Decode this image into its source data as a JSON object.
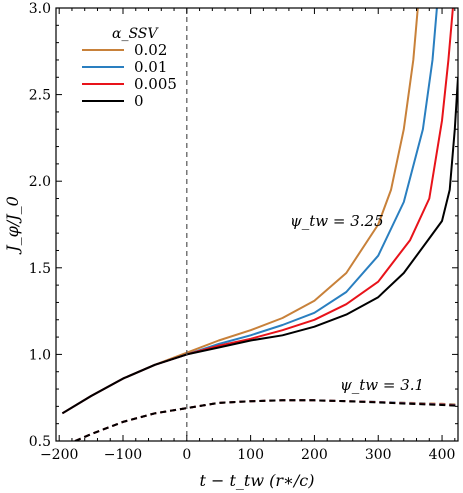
{
  "chart_data": {
    "type": "line",
    "xlabel": "t − t_tw  (r∗/c)",
    "ylabel": "J_φ/J_0",
    "xlim": [
      -205,
      425
    ],
    "ylim": [
      0.5,
      3.0
    ],
    "x_ticks": [
      -200,
      -100,
      0,
      100,
      200,
      300,
      400
    ],
    "x_tick_labels": [
      "−200",
      "−100",
      "0",
      "100",
      "200",
      "300",
      "400"
    ],
    "y_ticks": [
      0.5,
      1.0,
      1.5,
      2.0,
      2.5,
      3.0
    ],
    "y_tick_labels": [
      "0.5",
      "1.0",
      "1.5",
      "2.0",
      "2.5",
      "3.0"
    ],
    "vline_x": 0,
    "legend": {
      "title": "α_SSV",
      "placement": "top-left",
      "entries": [
        "0.02",
        "0.01",
        "0.005",
        "0"
      ]
    },
    "annotations": [
      {
        "text": "ψ_tw = 3.25",
        "x": 210,
        "y": 1.77
      },
      {
        "text": "ψ_tw = 3.1",
        "x": 240,
        "y": 0.81
      }
    ],
    "colors": {
      "s002": "#c8813a",
      "s001": "#2a7fc0",
      "s0005": "#e8131a",
      "s0": "#000000"
    },
    "series": [
      {
        "name": "0.02",
        "color_key": "s002",
        "style": "solid",
        "points": [
          [
            -195,
            0.66
          ],
          [
            -150,
            0.76
          ],
          [
            -100,
            0.86
          ],
          [
            -50,
            0.94
          ],
          [
            0,
            1.01
          ],
          [
            50,
            1.08
          ],
          [
            100,
            1.14
          ],
          [
            150,
            1.21
          ],
          [
            200,
            1.31
          ],
          [
            250,
            1.47
          ],
          [
            300,
            1.75
          ],
          [
            320,
            1.95
          ],
          [
            340,
            2.3
          ],
          [
            355,
            2.7
          ],
          [
            362,
            3.0
          ]
        ]
      },
      {
        "name": "0.01",
        "color_key": "s001",
        "style": "solid",
        "points": [
          [
            -195,
            0.66
          ],
          [
            -150,
            0.76
          ],
          [
            -100,
            0.86
          ],
          [
            -50,
            0.94
          ],
          [
            0,
            1.0
          ],
          [
            50,
            1.06
          ],
          [
            100,
            1.11
          ],
          [
            150,
            1.17
          ],
          [
            200,
            1.24
          ],
          [
            250,
            1.36
          ],
          [
            300,
            1.57
          ],
          [
            340,
            1.88
          ],
          [
            370,
            2.3
          ],
          [
            385,
            2.7
          ],
          [
            392,
            3.0
          ]
        ]
      },
      {
        "name": "0.005",
        "color_key": "s0005",
        "style": "solid",
        "points": [
          [
            -195,
            0.66
          ],
          [
            -150,
            0.76
          ],
          [
            -100,
            0.86
          ],
          [
            -50,
            0.94
          ],
          [
            0,
            1.0
          ],
          [
            50,
            1.05
          ],
          [
            100,
            1.09
          ],
          [
            150,
            1.14
          ],
          [
            200,
            1.2
          ],
          [
            250,
            1.29
          ],
          [
            300,
            1.42
          ],
          [
            350,
            1.66
          ],
          [
            380,
            1.9
          ],
          [
            400,
            2.35
          ],
          [
            410,
            2.7
          ],
          [
            417,
            3.0
          ]
        ]
      },
      {
        "name": "0",
        "color_key": "s0",
        "style": "solid",
        "points": [
          [
            -195,
            0.66
          ],
          [
            -150,
            0.76
          ],
          [
            -100,
            0.86
          ],
          [
            -50,
            0.94
          ],
          [
            0,
            1.0
          ],
          [
            50,
            1.04
          ],
          [
            100,
            1.08
          ],
          [
            150,
            1.11
          ],
          [
            200,
            1.16
          ],
          [
            250,
            1.23
          ],
          [
            300,
            1.33
          ],
          [
            340,
            1.47
          ],
          [
            380,
            1.67
          ],
          [
            400,
            1.77
          ],
          [
            412,
            1.95
          ],
          [
            420,
            2.3
          ],
          [
            425,
            2.6
          ]
        ]
      },
      {
        "name": "",
        "color_key": "s002",
        "style": "dashed",
        "points": [
          [
            -175,
            0.5
          ],
          [
            -150,
            0.54
          ],
          [
            -100,
            0.61
          ],
          [
            -50,
            0.66
          ],
          [
            0,
            0.69
          ],
          [
            50,
            0.72
          ],
          [
            100,
            0.73
          ],
          [
            150,
            0.735
          ],
          [
            200,
            0.735
          ],
          [
            250,
            0.73
          ],
          [
            300,
            0.725
          ],
          [
            350,
            0.72
          ],
          [
            400,
            0.715
          ],
          [
            425,
            0.71
          ]
        ]
      },
      {
        "name": "",
        "color_key": "s001",
        "style": "dashed",
        "points": [
          [
            -175,
            0.5
          ],
          [
            -150,
            0.54
          ],
          [
            -100,
            0.61
          ],
          [
            -50,
            0.66
          ],
          [
            0,
            0.69
          ],
          [
            50,
            0.72
          ],
          [
            100,
            0.73
          ],
          [
            150,
            0.735
          ],
          [
            200,
            0.735
          ],
          [
            250,
            0.73
          ],
          [
            300,
            0.725
          ],
          [
            350,
            0.718
          ],
          [
            400,
            0.712
          ],
          [
            425,
            0.707
          ]
        ]
      },
      {
        "name": "",
        "color_key": "s0005",
        "style": "dashed",
        "points": [
          [
            -175,
            0.5
          ],
          [
            -150,
            0.54
          ],
          [
            -100,
            0.61
          ],
          [
            -50,
            0.66
          ],
          [
            0,
            0.69
          ],
          [
            50,
            0.72
          ],
          [
            100,
            0.73
          ],
          [
            150,
            0.735
          ],
          [
            200,
            0.735
          ],
          [
            250,
            0.73
          ],
          [
            300,
            0.724
          ],
          [
            350,
            0.716
          ],
          [
            400,
            0.71
          ],
          [
            425,
            0.705
          ]
        ]
      },
      {
        "name": "",
        "color_key": "s0",
        "style": "dashed",
        "points": [
          [
            -175,
            0.5
          ],
          [
            -150,
            0.54
          ],
          [
            -100,
            0.61
          ],
          [
            -50,
            0.66
          ],
          [
            0,
            0.69
          ],
          [
            50,
            0.72
          ],
          [
            100,
            0.73
          ],
          [
            150,
            0.735
          ],
          [
            200,
            0.735
          ],
          [
            250,
            0.73
          ],
          [
            300,
            0.723
          ],
          [
            350,
            0.715
          ],
          [
            400,
            0.708
          ],
          [
            425,
            0.703
          ]
        ]
      }
    ]
  }
}
